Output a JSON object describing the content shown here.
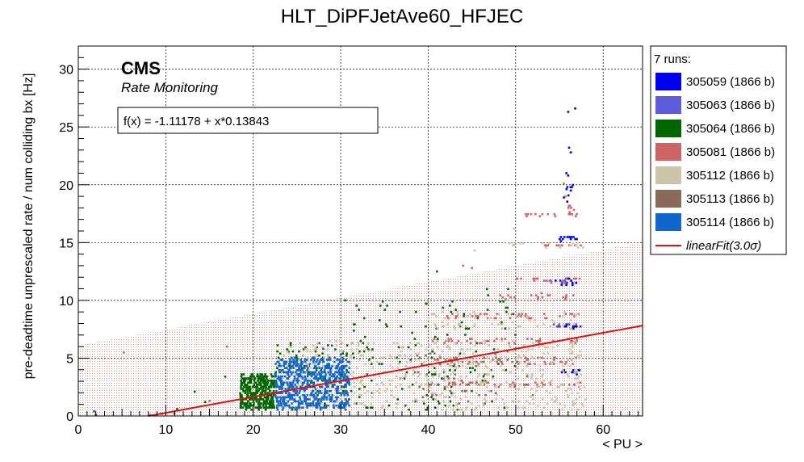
{
  "chart_data": {
    "type": "scatter",
    "title": "HLT_DiPFJetAve60_HFJEC",
    "xlabel": "< PU >",
    "ylabel": "pre-deadtime unprescaled rate / num colliding bx [Hz]",
    "xlim": [
      0,
      64.5
    ],
    "ylim": [
      0,
      32
    ],
    "x_ticks": [
      0,
      10,
      20,
      30,
      40,
      50,
      60
    ],
    "y_ticks": [
      0,
      5,
      10,
      15,
      20,
      25,
      30
    ],
    "grid": true,
    "cms_label": "CMS",
    "cms_sublabel": "Rate Monitoring",
    "fit_box_text": "f(x) = -1.11178 + x*0.13843",
    "fit": {
      "name": "linearFit(3.0σ)",
      "intercept": -1.11178,
      "slope": 0.13843,
      "sigma": 3.0,
      "color": "#dd1111",
      "band_color": "#a33a3a",
      "band_upper": [
        [
          0,
          6.1
        ],
        [
          64.5,
          15.0
        ]
      ]
    },
    "legend": {
      "header": "7 runs:",
      "placement": "right",
      "entries": [
        {
          "label": "305059 (1866 b)",
          "color": "#0000ee"
        },
        {
          "label": "305063 (1866 b)",
          "color": "#5c5cdc"
        },
        {
          "label": "305064 (1866 b)",
          "color": "#006600"
        },
        {
          "label": "305081 (1866 b)",
          "color": "#cc6666"
        },
        {
          "label": "305112 (1866 b)",
          "color": "#ccc4a8"
        },
        {
          "label": "305113 (1866 b)",
          "color": "#8a6a5a"
        },
        {
          "label": "305114 (1866 b)",
          "color": "#1166cc"
        },
        {
          "label": "linearFit(3.0σ)",
          "color": "#dd1111",
          "line": true
        }
      ]
    },
    "series": [
      {
        "name": "305059 (1866 b)",
        "color": "#0000ee",
        "clusters": [
          {
            "x": [
              55,
              57.5
            ],
            "y": [
              3.6,
              4.0
            ],
            "n": 14
          },
          {
            "x": [
              54.5,
              57.5
            ],
            "y": [
              7.6,
              8.0
            ],
            "n": 14
          },
          {
            "x": [
              54.5,
              57.5
            ],
            "y": [
              11.3,
              11.9
            ],
            "n": 14
          },
          {
            "x": [
              55,
              57
            ],
            "y": [
              15.0,
              15.6
            ],
            "n": 12
          },
          {
            "x": [
              55.5,
              56.8
            ],
            "y": [
              18.5,
              20.0
            ],
            "n": 8
          }
        ],
        "points": [
          [
            56,
            26.3
          ],
          [
            56.8,
            26.6
          ],
          [
            56.1,
            23.2
          ],
          [
            56.3,
            22.8
          ],
          [
            55.8,
            21.0
          ],
          [
            56.0,
            20.8
          ],
          [
            56.3,
            19.5
          ]
        ]
      },
      {
        "name": "305063 (1866 b)",
        "color": "#5c5cdc",
        "clusters": [
          {
            "x": [
              53,
              57
            ],
            "y": [
              11.4,
              11.8
            ],
            "n": 6
          },
          {
            "x": [
              54,
              57
            ],
            "y": [
              7.7,
              8.0
            ],
            "n": 6
          }
        ],
        "points": []
      },
      {
        "name": "305064 (1866 b)",
        "color": "#006600",
        "clusters": [
          {
            "x": [
              18.5,
              22.5
            ],
            "y": [
              0.6,
              3.6
            ],
            "n": 380
          },
          {
            "x": [
              22.5,
              31
            ],
            "y": [
              0.5,
              6.5
            ],
            "n": 110
          },
          {
            "x": [
              31,
              45
            ],
            "y": [
              0.5,
              10.0
            ],
            "n": 130
          },
          {
            "x": [
              45,
              50
            ],
            "y": [
              0.5,
              12.0
            ],
            "n": 30
          }
        ],
        "points": [
          [
            11.3,
            0.6
          ],
          [
            13.3,
            2.1
          ],
          [
            14.5,
            1.2
          ],
          [
            16.8,
            3.4
          ],
          [
            30.5,
            10.0
          ],
          [
            41.0,
            12.5
          ]
        ]
      },
      {
        "name": "305081 (1866 b)",
        "color": "#cc6666",
        "clusters": [
          {
            "x": [
              40,
              57.5
            ],
            "y": [
              2.6,
              3.0
            ],
            "n": 50
          },
          {
            "x": [
              40,
              57.5
            ],
            "y": [
              4.5,
              5.0
            ],
            "n": 50
          },
          {
            "x": [
              40,
              57.5
            ],
            "y": [
              6.3,
              6.7
            ],
            "n": 40
          },
          {
            "x": [
              42,
              57.5
            ],
            "y": [
              8.4,
              8.9
            ],
            "n": 40
          },
          {
            "x": [
              47,
              57.5
            ],
            "y": [
              10.0,
              10.6
            ],
            "n": 20
          },
          {
            "x": [
              50,
              57.5
            ],
            "y": [
              11.6,
              12.0
            ],
            "n": 18
          },
          {
            "x": [
              53,
              57.5
            ],
            "y": [
              14.6,
              14.9
            ],
            "n": 12
          },
          {
            "x": [
              51,
              57
            ],
            "y": [
              17.3,
              17.5
            ],
            "n": 14
          },
          {
            "x": [
              56,
              57
            ],
            "y": [
              17.3,
              18.3
            ],
            "n": 8
          }
        ],
        "points": [
          [
            5.2,
            5.5
          ],
          [
            8.2,
            0.1
          ],
          [
            15.0,
            1.3
          ],
          [
            17.0,
            6.0
          ],
          [
            44.0,
            13.0
          ],
          [
            45.0,
            12.8
          ],
          [
            55.5,
            20.1
          ],
          [
            55.7,
            19.0
          ]
        ]
      },
      {
        "name": "305112 (1866 b)",
        "color": "#ccc4a8",
        "clusters": [
          {
            "x": [
              23,
              58
            ],
            "y": [
              0.5,
              6.5
            ],
            "n": 520
          },
          {
            "x": [
              40,
              58
            ],
            "y": [
              7.5,
              9.0
            ],
            "n": 60
          },
          {
            "x": [
              48,
              58
            ],
            "y": [
              14.5,
              15.0
            ],
            "n": 16
          }
        ],
        "points": [
          [
            45.3,
            14.3
          ],
          [
            49.8,
            16.2
          ]
        ]
      },
      {
        "name": "305113 (1866 b)",
        "color": "#8a6a5a",
        "clusters": [
          {
            "x": [
              38,
              52
            ],
            "y": [
              1.0,
              5.5
            ],
            "n": 60
          }
        ],
        "points": []
      },
      {
        "name": "305114 (1866 b)",
        "color": "#1166cc",
        "clusters": [
          {
            "x": [
              22.5,
              31
            ],
            "y": [
              0.6,
              5.0
            ],
            "n": 650
          }
        ],
        "points": [
          [
            1.8,
            0.4
          ],
          [
            2.0,
            0.1
          ],
          [
            9.5,
            0.2
          ],
          [
            11.0,
            0.2
          ],
          [
            28.0,
            5.8
          ],
          [
            29.0,
            6.1
          ],
          [
            30.0,
            5.3
          ]
        ]
      }
    ]
  }
}
